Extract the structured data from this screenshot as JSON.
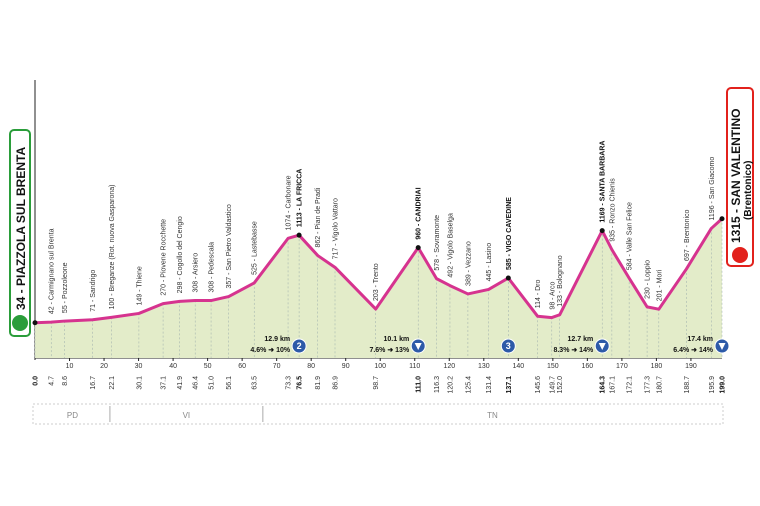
{
  "chart_data": {
    "type": "area",
    "color": "#d6338f",
    "fill": "#e3ecc9",
    "x": [
      0.0,
      4.7,
      8.6,
      16.7,
      22.1,
      30.1,
      37.1,
      41.9,
      46.4,
      51.0,
      56.1,
      63.5,
      73.3,
      76.5,
      81.9,
      86.9,
      98.7,
      111.0,
      116.3,
      120.2,
      125.4,
      131.4,
      137.1,
      145.6,
      149.7,
      152.0,
      164.3,
      167.1,
      172.1,
      177.3,
      180.7,
      188.7,
      195.9,
      199.0
    ],
    "x_labels": [
      "0.0",
      "4.7",
      "8.6",
      "16.7",
      "22.1",
      "30.1",
      "37.1",
      "41.9",
      "46.4",
      "51.0",
      "56.1",
      "63.5",
      "73.3",
      "76.5",
      "81.9",
      "86.9",
      "98.7",
      "111.0",
      "116.3",
      "120.2",
      "125.4",
      "131.4",
      "137.1",
      "145.6",
      "149.7",
      "152.0",
      "164.3",
      "167.1",
      "172.1",
      "177.3",
      "180.7",
      "188.7",
      "195.9",
      "199.0"
    ],
    "values": [
      34,
      42,
      55,
      71,
      100,
      149,
      270,
      298,
      308,
      308,
      357,
      525,
      1074,
      1113,
      862,
      717,
      203,
      960,
      578,
      492,
      389,
      445,
      585,
      114,
      98,
      133,
      1169,
      935,
      584,
      230,
      201,
      697,
      1196,
      1315
    ],
    "labels": [
      null,
      "42 - Carmignano sul Brenta",
      "55 - Pozzoleone",
      "71 - Sandrigo",
      "100 - Breganze (Rot. nuova Gasparona)",
      "149 - Thiene",
      "270 - Piovene Rocchette",
      "298 - Cogollo del Cengio",
      "308 - Arsiero",
      "308 - Pedescala",
      "357 - San Pietro Valdastico",
      "525 - Lastebasse",
      "1074 - Carbonare",
      "1113 - LA FRICCA",
      "862 - Pian de Pradi",
      "717 - Vigolo Vattaro",
      "203 - Trento",
      "960 - CANDRIAI",
      "578 - Sovramonte",
      "492 - Vigolo Baselga",
      "389 - Vezzano",
      "445 - Lasino",
      "585 - VIGO CAVEDINE",
      "114 - Dro",
      "98 - Arco",
      "133 - Bolognano",
      "1169 - SANTA BARBARA",
      "935 - Ronzo Chienis",
      "584 - Valle San Felice",
      "230 - Loppio",
      "201 - Mori",
      "697 - Brentonico",
      "1196 - San Giacomo",
      null
    ],
    "bold": [
      0,
      13,
      17,
      22,
      26,
      33
    ],
    "start_label": "34 - PIAZZOLA SUL BRENTA",
    "finish_label": "1315 - SAN VALENTINO",
    "finish_sublabel": "(Brentonico)",
    "xlim": [
      0,
      199
    ],
    "ylim": [
      -400,
      3000
    ],
    "xticks": [
      10,
      20,
      30,
      40,
      50,
      60,
      70,
      80,
      90,
      100,
      110,
      120,
      130,
      140,
      150,
      160,
      170,
      180,
      190
    ],
    "climbs": [
      {
        "x": 76.5,
        "category": "2",
        "length": "12.9 km",
        "gradient": "4.6% ➜ 10%"
      },
      {
        "x": 111.0,
        "category": null,
        "length": "10.1 km",
        "gradient": "7.6% ➜ 13%"
      },
      {
        "x": 137.1,
        "category": "3",
        "length": null,
        "gradient": null
      },
      {
        "x": 164.3,
        "category": null,
        "length": "12.7 km",
        "gradient": "8.3% ➜ 14%"
      },
      {
        "x": 199.0,
        "category": null,
        "length": "17.4 km",
        "gradient": "6.4% ➜ 14%"
      }
    ],
    "regions": [
      {
        "name": "PD",
        "start": 0,
        "end": 21.7
      },
      {
        "name": "VI",
        "start": 21.7,
        "end": 66
      },
      {
        "name": "TN",
        "start": 66,
        "end": 199
      }
    ]
  }
}
